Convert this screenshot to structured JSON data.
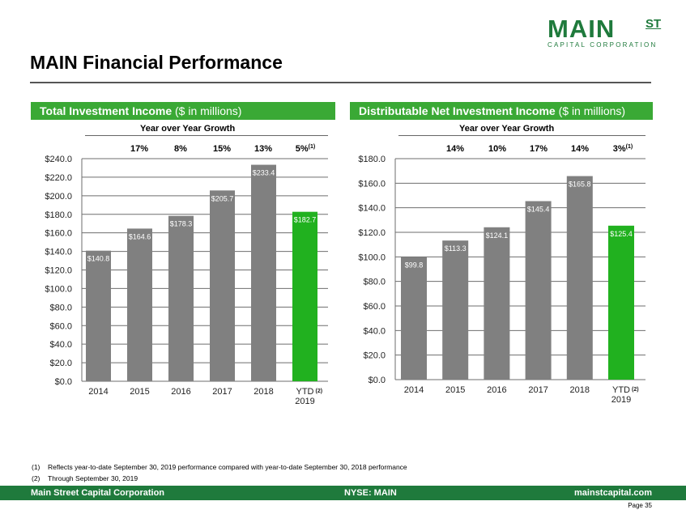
{
  "logo": {
    "main": "MAIN",
    "st": "ST",
    "sub": "CAPITAL CORPORATION"
  },
  "page_title": "MAIN Financial Performance",
  "panels": [
    {
      "header_bold": "Total Investment Income",
      "header_rest": " ($ in millions)",
      "growth_label": "Year over Year Growth"
    },
    {
      "header_bold": "Distributable Net Investment Income",
      "header_rest": " ($ in millions)",
      "growth_label": "Year over Year Growth"
    }
  ],
  "chart_data": [
    {
      "type": "bar",
      "title": "Total Investment Income ($ in millions)",
      "categories": [
        "2014",
        "2015",
        "2016",
        "2017",
        "2018",
        "YTD 2019"
      ],
      "category_notes": [
        "",
        "",
        "",
        "",
        "",
        "(2)"
      ],
      "values": [
        140.8,
        164.6,
        178.3,
        205.7,
        233.4,
        182.7
      ],
      "data_labels": [
        "$140.8",
        "$164.6",
        "$178.3",
        "$205.7",
        "$233.4",
        "$182.7"
      ],
      "bar_colors": [
        "#808080",
        "#808080",
        "#808080",
        "#808080",
        "#808080",
        "#21b11f"
      ],
      "growth": [
        "17%",
        "8%",
        "15%",
        "13%",
        "5%"
      ],
      "growth_notes": [
        "",
        "",
        "",
        "",
        "(1)"
      ],
      "ylim": [
        0,
        240
      ],
      "yticks": [
        0,
        20,
        40,
        60,
        80,
        100,
        120,
        140,
        160,
        180,
        200,
        220,
        240
      ],
      "ytick_labels": [
        "$0.0",
        "$20.0",
        "$40.0",
        "$60.0",
        "$80.0",
        "$100.0",
        "$120.0",
        "$140.0",
        "$160.0",
        "$180.0",
        "$200.0",
        "$220.0",
        "$240.0"
      ],
      "grid": true
    },
    {
      "type": "bar",
      "title": "Distributable Net Investment Income ($ in millions)",
      "categories": [
        "2014",
        "2015",
        "2016",
        "2017",
        "2018",
        "YTD 2019"
      ],
      "category_notes": [
        "",
        "",
        "",
        "",
        "",
        "(2)"
      ],
      "values": [
        99.8,
        113.3,
        124.1,
        145.4,
        165.8,
        125.4
      ],
      "data_labels": [
        "$99.8",
        "$113.3",
        "$124.1",
        "$145.4",
        "$165.8",
        "$125.4"
      ],
      "bar_colors": [
        "#808080",
        "#808080",
        "#808080",
        "#808080",
        "#808080",
        "#21b11f"
      ],
      "growth": [
        "14%",
        "10%",
        "17%",
        "14%",
        "3%"
      ],
      "growth_notes": [
        "",
        "",
        "",
        "",
        "(1)"
      ],
      "ylim": [
        0,
        180
      ],
      "yticks": [
        0,
        20,
        40,
        60,
        80,
        100,
        120,
        140,
        160,
        180
      ],
      "ytick_labels": [
        "$0.0",
        "$20.0",
        "$40.0",
        "$60.0",
        "$80.0",
        "$100.0",
        "$120.0",
        "$140.0",
        "$160.0",
        "$180.0"
      ],
      "grid": true
    }
  ],
  "footnotes": [
    {
      "num": "(1)",
      "text": "Reflects year-to-date September 30, 2019 performance compared with year-to-date September 30, 2018 performance"
    },
    {
      "num": "(2)",
      "text": "Through September 30, 2019"
    }
  ],
  "footer": {
    "left": "Main Street Capital Corporation",
    "center": "NYSE: MAIN",
    "right": "mainstcapital.com"
  },
  "page_number": "Page  35",
  "colors": {
    "brand_green": "#1f7a3c",
    "header_green": "#3aa935",
    "bar_gray": "#808080",
    "bar_highlight": "#21b11f"
  }
}
